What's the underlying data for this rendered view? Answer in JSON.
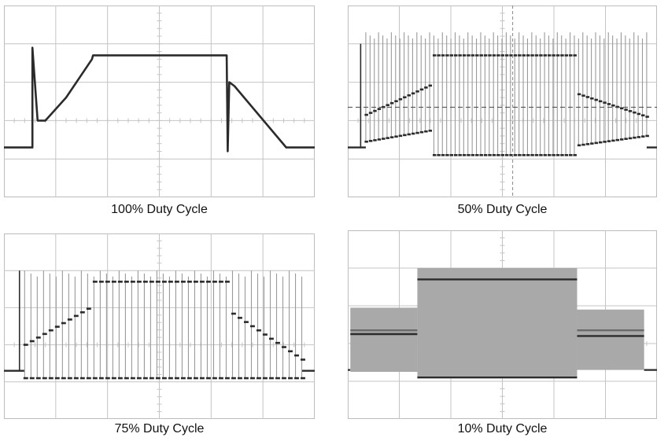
{
  "panels": [
    {
      "caption": "100% Duty Cycle",
      "chart_data": {
        "type": "line",
        "title": "",
        "duty_cycle_percent": 100,
        "grid": true,
        "grid_divisions": {
          "x": 6,
          "y": 5
        },
        "trace_color": "#2b2b2b",
        "envelope": {
          "x_div": [
            0,
            0.55,
            0.55,
            0.65,
            0.8,
            1.2,
            1.7,
            1.72,
            4.3,
            4.32,
            4.35,
            4.45,
            5.45,
            5.45,
            6
          ],
          "y_div": [
            1.3,
            1.3,
            3.9,
            2.0,
            2.0,
            2.6,
            3.6,
            3.7,
            3.7,
            1.2,
            3.0,
            2.9,
            1.3,
            1.3,
            1.3
          ]
        }
      }
    },
    {
      "caption": "50% Duty Cycle",
      "chart_data": {
        "type": "line",
        "title": "",
        "duty_cycle_percent": 50,
        "grid": true,
        "grid_divisions": {
          "x": 6,
          "y": 5
        },
        "trace_color": "#2b2b2b",
        "spike_color": "#9a9a9a",
        "baseline_div": 1.3,
        "idle_div": 1.3,
        "upper_envelope": {
          "x_div": [
            0.35,
            1.65,
            1.65,
            4.45,
            4.45,
            5.8
          ],
          "y_div": [
            2.15,
            2.95,
            3.7,
            3.7,
            2.7,
            2.1
          ]
        },
        "lower_envelope": {
          "x_div": [
            0.35,
            1.65,
            1.65,
            4.45,
            4.45,
            5.8
          ],
          "y_div": [
            1.45,
            1.75,
            1.1,
            1.1,
            1.35,
            1.6
          ]
        },
        "spike_top_div": 4.3,
        "reference_line_div": 2.35,
        "cursor_x_div": 3.2
      }
    },
    {
      "caption": "75% Duty Cycle",
      "chart_data": {
        "type": "line",
        "title": "",
        "duty_cycle_percent": 75,
        "grid": true,
        "grid_divisions": {
          "x": 6,
          "y": 5
        },
        "trace_color": "#2b2b2b",
        "spike_color": "#9a9a9a",
        "baseline_div": 1.3,
        "upper_envelope": {
          "x_div": [
            0.4,
            1.65,
            1.65,
            4.4,
            4.4,
            5.75
          ],
          "y_div": [
            2.0,
            3.0,
            3.7,
            3.7,
            2.85,
            1.6
          ]
        },
        "lower_envelope": {
          "x_div": [
            0.4,
            1.65,
            1.65,
            4.4,
            4.4,
            5.75
          ],
          "y_div": [
            1.1,
            1.1,
            1.1,
            1.1,
            1.1,
            1.1
          ]
        },
        "spike_top_div": 4.0
      }
    },
    {
      "caption": "10% Duty Cycle",
      "chart_data": {
        "type": "area",
        "title": "",
        "duty_cycle_percent": 10,
        "grid": true,
        "grid_divisions": {
          "x": 6,
          "y": 5
        },
        "trace_color": "#2b2b2b",
        "fill_color": "#a9a9a9",
        "baseline_div": 1.3,
        "segments": [
          {
            "x_start_div": 0.05,
            "x_end_div": 1.35,
            "band_top_div": 2.35,
            "band_bottom_div": 2.25,
            "upper_div": 2.95,
            "lower_div": 1.25
          },
          {
            "x_start_div": 1.35,
            "x_end_div": 4.45,
            "band_top_div": 3.7,
            "band_bottom_div": 1.1,
            "upper_div": 4.0,
            "lower_div": 1.1
          },
          {
            "x_start_div": 4.45,
            "x_end_div": 5.75,
            "band_top_div": 2.35,
            "band_bottom_div": 2.2,
            "upper_div": 2.9,
            "lower_div": 1.3
          }
        ]
      }
    }
  ]
}
